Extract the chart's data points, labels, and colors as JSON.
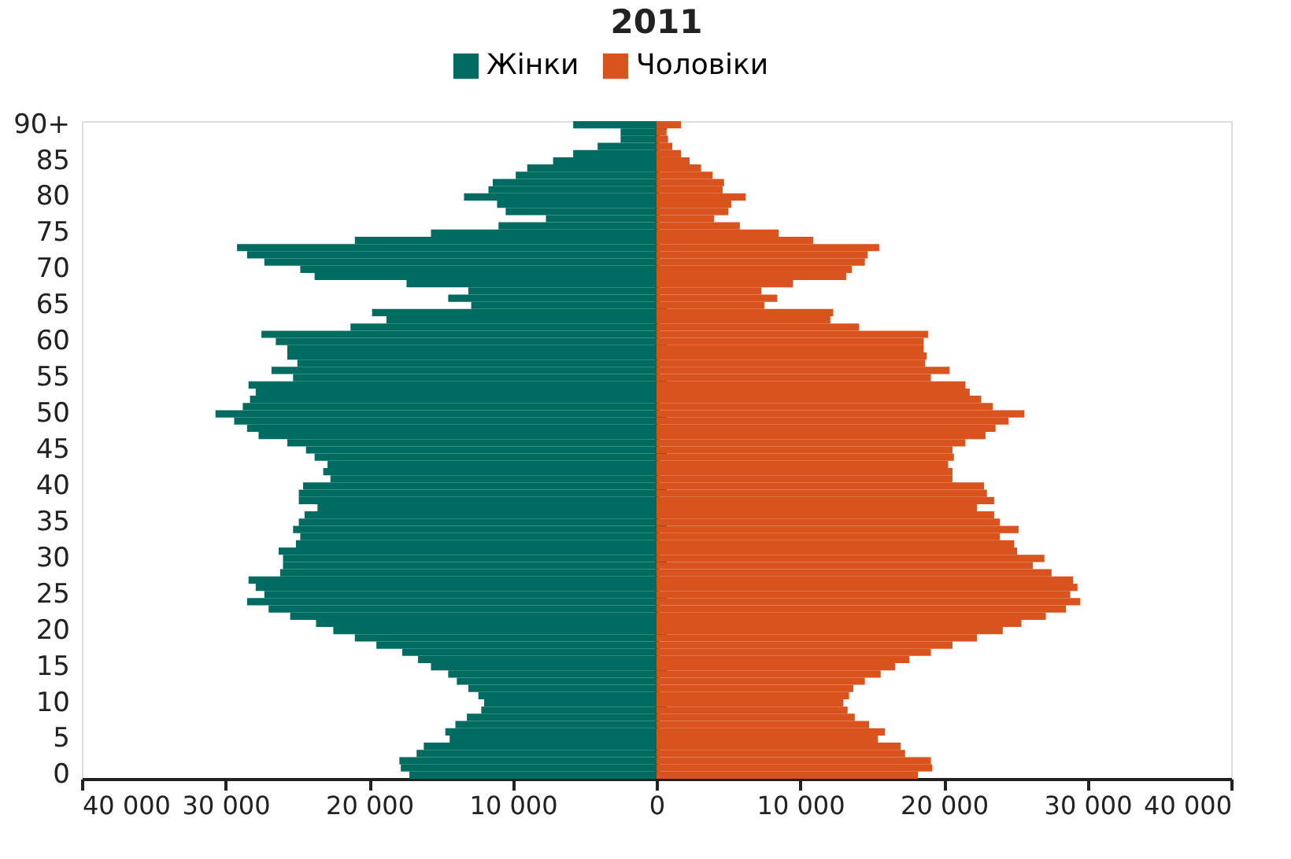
{
  "chart_data": {
    "type": "bar",
    "orientation": "horizontal",
    "stacked": true,
    "title": "2011",
    "legend": "top",
    "categories": [
      "90+",
      null,
      null,
      null,
      null,
      "85",
      null,
      null,
      null,
      null,
      "80",
      null,
      null,
      null,
      null,
      "75",
      null,
      null,
      null,
      null,
      "70",
      null,
      null,
      null,
      null,
      "65",
      null,
      null,
      null,
      null,
      "60",
      null,
      null,
      null,
      null,
      "55",
      null,
      null,
      null,
      null,
      "50",
      null,
      null,
      null,
      null,
      "45",
      null,
      null,
      null,
      null,
      "40",
      null,
      null,
      null,
      null,
      "35",
      null,
      null,
      null,
      null,
      "30",
      null,
      null,
      null,
      null,
      "25",
      null,
      null,
      null,
      null,
      "20",
      null,
      null,
      null,
      null,
      "15",
      null,
      null,
      null,
      null,
      "10",
      null,
      null,
      null,
      null,
      "5",
      null,
      null,
      null,
      null,
      "0"
    ],
    "xlim": [
      -40000,
      40000
    ],
    "xticks": [
      {
        "value": -40000,
        "label": "40 000"
      },
      {
        "value": -30000,
        "label": "30 000"
      },
      {
        "value": -20000,
        "label": "20 000"
      },
      {
        "value": -10000,
        "label": "10 000"
      },
      0,
      {
        "value": 10000,
        "label": "10 000"
      },
      {
        "value": 20000,
        "label": "20 000"
      },
      {
        "value": 30000,
        "label": "30 000"
      },
      {
        "value": 40000,
        "label": "40 000"
      }
    ],
    "series": [
      {
        "name": "Жінки",
        "color": "#006b60",
        "values": [
          -5800,
          -2500,
          -2500,
          -4100,
          -5800,
          -7200,
          -9000,
          -9800,
          -11400,
          -11700,
          -13400,
          -11100,
          -10500,
          -7700,
          -11000,
          -15700,
          -21000,
          -29200,
          -28500,
          -27300,
          -24800,
          -23800,
          -17400,
          -13100,
          -14500,
          -12900,
          -19800,
          -18800,
          -21300,
          -27500,
          -26500,
          -25700,
          -25700,
          -25000,
          -26800,
          -25300,
          -28400,
          -27900,
          -28300,
          -28800,
          -30700,
          -29400,
          -28500,
          -27700,
          -25700,
          -24400,
          -23800,
          -22900,
          -23200,
          -22700,
          -24600,
          -24900,
          -24900,
          -23600,
          -24500,
          -24900,
          -25300,
          -24800,
          -25100,
          -26300,
          -26000,
          -26000,
          -26200,
          -28400,
          -27900,
          -27300,
          -28500,
          -27000,
          -25500,
          -23700,
          -22500,
          -21000,
          -19500,
          -17700,
          -16600,
          -15700,
          -14500,
          -13900,
          -13100,
          -12400,
          -12000,
          -12200,
          -13200,
          -14000,
          -14700,
          -14400,
          -16200,
          -16700,
          -17900,
          -17800,
          -17200
        ]
      },
      {
        "name": "Чоловіки",
        "color": "#d9531e",
        "values": [
          1700,
          700,
          800,
          1100,
          1700,
          2300,
          3100,
          3900,
          4700,
          4600,
          6200,
          5200,
          5000,
          4000,
          5800,
          8500,
          10900,
          15500,
          14700,
          14500,
          13600,
          13200,
          9500,
          7300,
          8400,
          7500,
          12300,
          12100,
          14100,
          18900,
          18600,
          18600,
          18800,
          18700,
          20400,
          19100,
          21500,
          21800,
          22600,
          23400,
          25600,
          24500,
          23600,
          22900,
          21500,
          20600,
          20700,
          20300,
          20600,
          20600,
          22800,
          23000,
          23500,
          22300,
          23500,
          23900,
          25200,
          23900,
          24900,
          25100,
          27000,
          26200,
          27500,
          29000,
          29300,
          28800,
          29500,
          28500,
          27100,
          25400,
          24100,
          22300,
          20600,
          19100,
          17600,
          16600,
          15600,
          14500,
          13700,
          13400,
          13000,
          13300,
          13800,
          14800,
          15900,
          15400,
          17000,
          17300,
          19100,
          19200,
          18200
        ]
      }
    ]
  }
}
